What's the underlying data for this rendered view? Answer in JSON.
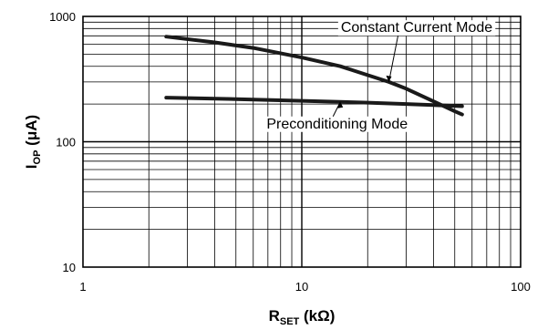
{
  "chart_data": {
    "type": "line",
    "x_scale": "log",
    "y_scale": "log",
    "xlim": [
      1,
      100
    ],
    "ylim": [
      10,
      1000
    ],
    "grid": true,
    "x_ticks": [
      "1",
      "10",
      "100"
    ],
    "y_ticks": [
      "10",
      "100",
      "1000"
    ],
    "xlabel": {
      "main": "R",
      "sub": "SET",
      "unit": " (kΩ)"
    },
    "ylabel": {
      "main": "I",
      "sub": "OP",
      "unit": " (μA)"
    },
    "series": [
      {
        "name": "Constant Current Mode",
        "x": [
          2.4,
          4,
          6,
          10,
          15,
          20,
          25,
          30,
          40,
          50,
          54
        ],
        "y": [
          690,
          620,
          560,
          470,
          400,
          340,
          300,
          265,
          210,
          175,
          165
        ]
      },
      {
        "name": "Preconditioning Mode",
        "x": [
          2.4,
          5,
          10,
          20,
          30,
          40,
          54
        ],
        "y": [
          225,
          219,
          212,
          205,
          200,
          196,
          192
        ]
      }
    ],
    "annotations": [
      {
        "series": 0,
        "text": "Constant Current Mode",
        "text_at": [
          33.5,
          750
        ],
        "arrow_to": [
          25,
          300
        ]
      },
      {
        "series": 1,
        "text": "Preconditioning Mode",
        "text_at": [
          14.5,
          128
        ],
        "arrow_to": [
          15,
          208
        ]
      }
    ]
  }
}
